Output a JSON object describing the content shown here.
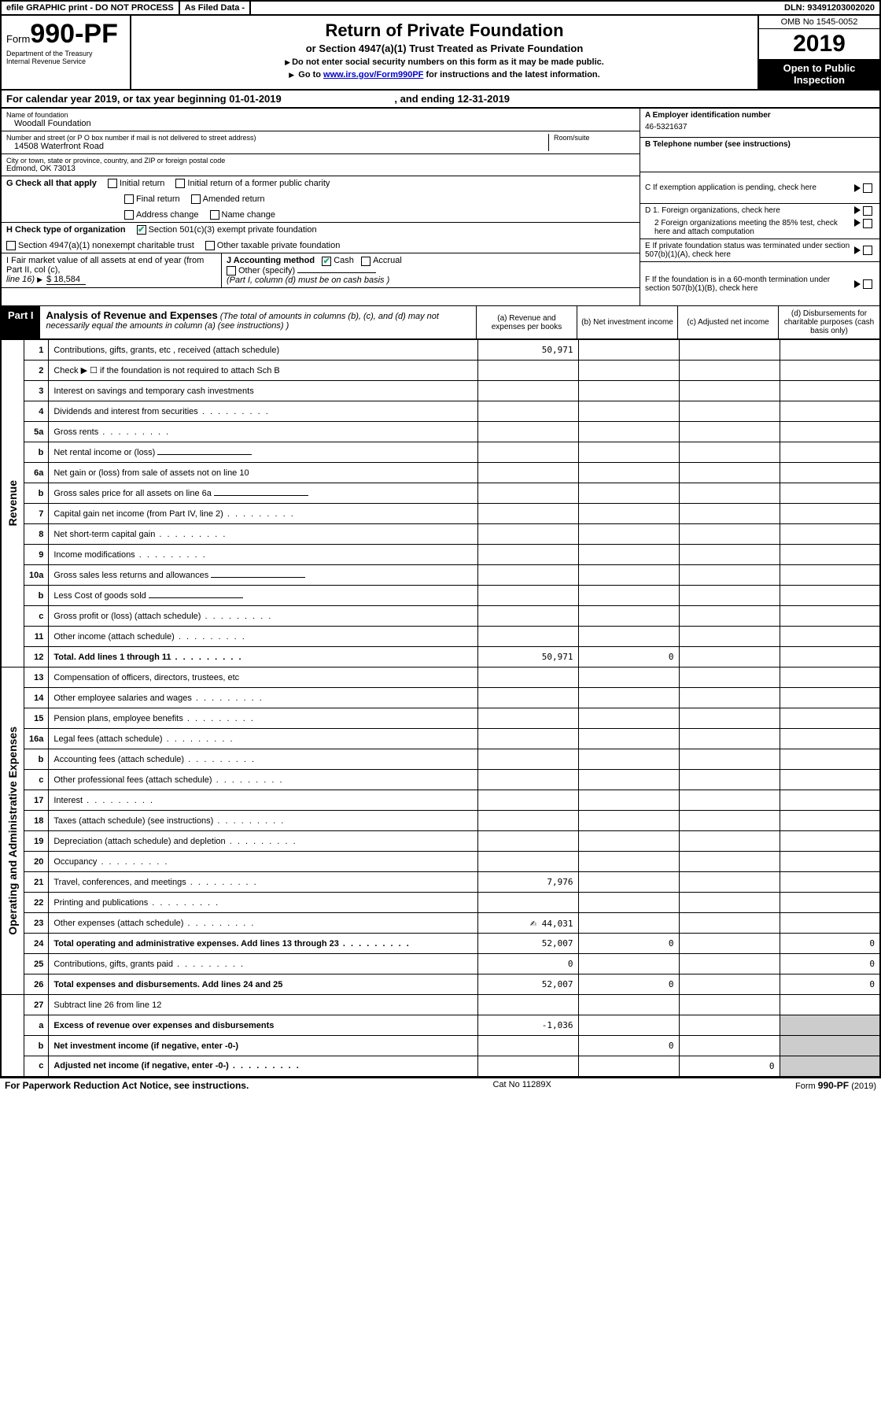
{
  "topbar": {
    "efile": "efile GRAPHIC print - DO NOT PROCESS",
    "asfiled": "As Filed Data -",
    "dln_lbl": "DLN:",
    "dln": "93491203002020"
  },
  "header": {
    "form_word": "Form",
    "form_num": "990-PF",
    "dept1": "Department of the Treasury",
    "dept2": "Internal Revenue Service",
    "title": "Return of Private Foundation",
    "subtitle": "or Section 4947(a)(1) Trust Treated as Private Foundation",
    "instr1": "Do not enter social security numbers on this form as it may be made public.",
    "instr2_pre": "Go to ",
    "instr2_link": "www.irs.gov/Form990PF",
    "instr2_post": " for instructions and the latest information.",
    "omb": "OMB No 1545-0052",
    "year": "2019",
    "open": "Open to Public Inspection"
  },
  "calendar": {
    "pre": "For calendar year 2019, or tax year beginning ",
    "begin": "01-01-2019",
    "mid": ", and ending ",
    "end": "12-31-2019"
  },
  "name": {
    "lbl": "Name of foundation",
    "val": "Woodall Foundation"
  },
  "ein": {
    "lbl": "A Employer identification number",
    "val": "46-5321637"
  },
  "address": {
    "lbl": "Number and street (or P O  box number if mail is not delivered to street address)",
    "room_lbl": "Room/suite",
    "val": "14508 Waterfront Road"
  },
  "phone": {
    "lbl": "B Telephone number (see instructions)"
  },
  "city": {
    "lbl": "City or town, state or province, country, and ZIP or foreign postal code",
    "val": "Edmond, OK  73013"
  },
  "c": "C If exemption application is pending, check here",
  "g": {
    "lbl": "G Check all that apply",
    "o1": "Initial return",
    "o2": "Initial return of a former public charity",
    "o3": "Final return",
    "o4": "Amended return",
    "o5": "Address change",
    "o6": "Name change"
  },
  "d": {
    "d1": "D 1. Foreign organizations, check here",
    "d2": "2 Foreign organizations meeting the 85% test, check here and attach computation"
  },
  "h": {
    "lbl": "H Check type of organization",
    "o1": "Section 501(c)(3) exempt private foundation",
    "o2": "Section 4947(a)(1) nonexempt charitable trust",
    "o3": "Other taxable private foundation"
  },
  "e": "E  If private foundation status was terminated under section 507(b)(1)(A), check here",
  "i": {
    "lbl": "I Fair market value of all assets at end of year (from Part II, col  (c),",
    "line": "line 16)",
    "val": "$  18,584"
  },
  "j": {
    "lbl": "J Accounting method",
    "o1": "Cash",
    "o2": "Accrual",
    "o3": "Other (specify)",
    "note": "(Part I, column (d) must be on cash basis )"
  },
  "f": "F  If the foundation is in a 60-month termination under section 507(b)(1)(B), check here",
  "part1": {
    "lbl": "Part I",
    "title": "Analysis of Revenue and Expenses",
    "desc": "(The total of amounts in columns (b), (c), and (d) may not necessarily equal the amounts in column (a) (see instructions) )",
    "col_a": "(a)  Revenue and expenses per books",
    "col_b": "(b)  Net investment income",
    "col_c": "(c)  Adjusted net income",
    "col_d": "(d)  Disbursements for charitable purposes (cash basis only)"
  },
  "rot": {
    "rev": "Revenue",
    "exp": "Operating and Administrative Expenses"
  },
  "rows": [
    {
      "n": "1",
      "d": "Contributions, gifts, grants, etc , received (attach schedule)",
      "a": "50,971"
    },
    {
      "n": "2",
      "d": "Check ▶ ☐ if the foundation is not required to attach Sch  B",
      "dotsOff": true,
      "a": ""
    },
    {
      "n": "3",
      "d": "Interest on savings and temporary cash investments"
    },
    {
      "n": "4",
      "d": "Dividends and interest from securities",
      "dots": true
    },
    {
      "n": "5a",
      "d": "Gross rents",
      "dots": true
    },
    {
      "n": "b",
      "d": "Net rental income or (loss)",
      "sub": true
    },
    {
      "n": "6a",
      "d": "Net gain or (loss) from sale of assets not on line 10"
    },
    {
      "n": "b",
      "d": "Gross sales price for all assets on line 6a",
      "sub": true
    },
    {
      "n": "7",
      "d": "Capital gain net income (from Part IV, line 2)",
      "dots": true
    },
    {
      "n": "8",
      "d": "Net short-term capital gain",
      "dots": true
    },
    {
      "n": "9",
      "d": "Income modifications",
      "dots": true
    },
    {
      "n": "10a",
      "d": "Gross sales less returns and allowances",
      "sub": true
    },
    {
      "n": "b",
      "d": "Less  Cost of goods sold",
      "dots": true,
      "sub": true
    },
    {
      "n": "c",
      "d": "Gross profit or (loss) (attach schedule)",
      "dots": true
    },
    {
      "n": "11",
      "d": "Other income (attach schedule)",
      "dots": true
    },
    {
      "n": "12",
      "d": "Total. Add lines 1 through 11",
      "bold": true,
      "dots": true,
      "a": "50,971",
      "b": "0"
    }
  ],
  "exp_rows": [
    {
      "n": "13",
      "d": "Compensation of officers, directors, trustees, etc"
    },
    {
      "n": "14",
      "d": "Other employee salaries and wages",
      "dots": true
    },
    {
      "n": "15",
      "d": "Pension plans, employee benefits",
      "dots": true
    },
    {
      "n": "16a",
      "d": "Legal fees (attach schedule)",
      "dots": true
    },
    {
      "n": "b",
      "d": "Accounting fees (attach schedule)",
      "dots": true
    },
    {
      "n": "c",
      "d": "Other professional fees (attach schedule)",
      "dots": true
    },
    {
      "n": "17",
      "d": "Interest",
      "dots": true
    },
    {
      "n": "18",
      "d": "Taxes (attach schedule) (see instructions)",
      "dots": true
    },
    {
      "n": "19",
      "d": "Depreciation (attach schedule) and depletion",
      "dots": true
    },
    {
      "n": "20",
      "d": "Occupancy",
      "dots": true
    },
    {
      "n": "21",
      "d": "Travel, conferences, and meetings",
      "dots": true,
      "a": "7,976"
    },
    {
      "n": "22",
      "d": "Printing and publications",
      "dots": true
    },
    {
      "n": "23",
      "d": "Other expenses (attach schedule)",
      "dots": true,
      "a": "44,031",
      "hand": true
    },
    {
      "n": "24",
      "d": "Total operating and administrative expenses. Add lines 13 through 23",
      "bold": true,
      "dots": true,
      "a": "52,007",
      "b": "0",
      "dd": "0",
      "split": true
    },
    {
      "n": "25",
      "d": "Contributions, gifts, grants paid",
      "dots": true,
      "a": "0",
      "dd": "0"
    },
    {
      "n": "26",
      "d": "Total expenses and disbursements. Add lines 24 and 25",
      "bold": true,
      "a": "52,007",
      "b": "0",
      "dd": "0"
    }
  ],
  "net_rows": [
    {
      "n": "27",
      "d": "Subtract line 26 from line 12"
    },
    {
      "n": "a",
      "d": "Excess of revenue over expenses and disbursements",
      "bold": true,
      "a": "-1,036"
    },
    {
      "n": "b",
      "d": "Net investment income (if negative, enter -0-)",
      "bold": true,
      "b": "0"
    },
    {
      "n": "c",
      "d": "Adjusted net income (if negative, enter -0-)",
      "bold": true,
      "dots": true,
      "c": "0"
    }
  ],
  "footer": {
    "left": "For Paperwork Reduction Act Notice, see instructions.",
    "mid": "Cat  No  11289X",
    "right_pre": "Form ",
    "right_b": "990-PF",
    "right_post": " (2019)"
  },
  "colors": {
    "border": "#000000",
    "bg": "#ffffff",
    "inspect_bg": "#000000",
    "inspect_fg": "#ffffff",
    "link": "#0000cc",
    "check": "#22aa77",
    "shade": "#cccccc"
  }
}
